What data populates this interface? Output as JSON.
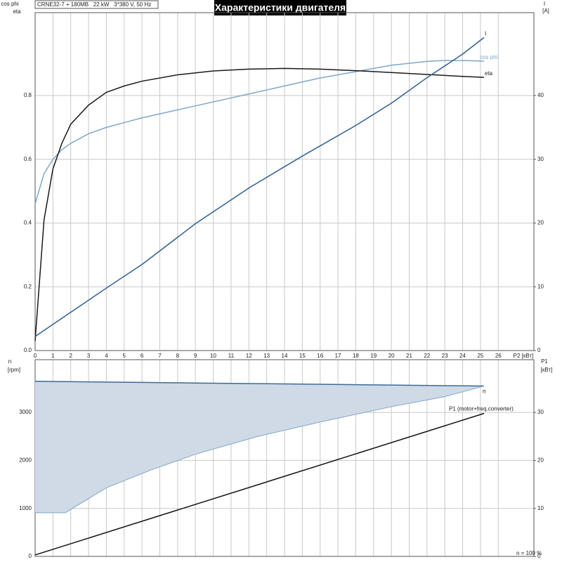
{
  "chart_data": [
    {
      "type": "line",
      "title": "Характеристики двигателя",
      "subtitle": "CRNE32-7 + 180MB   22 kW   3*380 V, 50 Hz",
      "y_label": [
        "cos phi",
        "eta"
      ],
      "y2_label": [
        "I",
        "[A]"
      ],
      "x_label": "P2 [кВт]",
      "xlim": [
        0,
        28
      ],
      "xticks": [
        0,
        1,
        2,
        3,
        4,
        5,
        6,
        7,
        8,
        9,
        10,
        11,
        12,
        13,
        14,
        15,
        16,
        17,
        18,
        19,
        20,
        21,
        22,
        23,
        24,
        25,
        26
      ],
      "ylim": [
        0,
        1.06
      ],
      "yticks": [
        {
          "value": 0,
          "label": "0.0"
        },
        0.2,
        0.4,
        0.6,
        0.8
      ],
      "y2lim": [
        0,
        53
      ],
      "y2ticks": [
        0,
        10,
        20,
        30,
        40
      ],
      "grid": true,
      "xtick_labels": true,
      "series": [
        {
          "name": "cos phi",
          "color": "#7ea7c9",
          "x": [
            0,
            0.5,
            1,
            1.5,
            2,
            3,
            4,
            5,
            6,
            8,
            10,
            12,
            14,
            16,
            18,
            20,
            22,
            23,
            24,
            25.2
          ],
          "values": [
            0.46,
            0.555,
            0.6,
            0.63,
            0.65,
            0.68,
            0.7,
            0.715,
            0.73,
            0.755,
            0.78,
            0.805,
            0.83,
            0.855,
            0.875,
            0.895,
            0.907,
            0.91,
            0.91,
            0.908
          ]
        },
        {
          "name": "eta",
          "color": "#1a1a1a",
          "x": [
            0,
            0.5,
            1,
            1.5,
            2,
            3,
            4,
            5,
            6,
            8,
            10,
            12,
            14,
            16,
            18,
            20,
            22,
            24,
            25.2
          ],
          "values": [
            0.03,
            0.41,
            0.57,
            0.65,
            0.71,
            0.77,
            0.81,
            0.83,
            0.845,
            0.865,
            0.877,
            0.883,
            0.885,
            0.883,
            0.878,
            0.872,
            0.866,
            0.86,
            0.857
          ]
        },
        {
          "name": "I",
          "color": "#2f5f8f",
          "axis": "y2",
          "x": [
            0,
            2,
            4,
            6,
            9,
            12,
            15,
            18,
            20,
            22,
            24,
            25.2
          ],
          "values": [
            2.2,
            6,
            9.8,
            13.5,
            19.9,
            25.5,
            30.5,
            35.3,
            38.8,
            42.8,
            46.5,
            49.1
          ]
        }
      ]
    },
    {
      "type": "area",
      "y_label": [
        "n",
        "[rpm]"
      ],
      "y2_label": [
        "P1",
        "[кВт]"
      ],
      "annotation": "n = 100 %",
      "xlim": [
        0,
        28
      ],
      "xticks": [
        0,
        1,
        2,
        3,
        4,
        5,
        6,
        7,
        8,
        9,
        10,
        11,
        12,
        13,
        14,
        15,
        16,
        17,
        18,
        19,
        20,
        21,
        22,
        23,
        24,
        25,
        26
      ],
      "ylim": [
        0,
        4100
      ],
      "yticks": [
        0,
        1000,
        2000,
        3000
      ],
      "y2lim": [
        0,
        41
      ],
      "y2ticks": [
        0,
        10,
        20,
        30
      ],
      "grid": true,
      "xtick_labels": false,
      "series": [
        {
          "name": "n",
          "color": "#3d6a96",
          "fill": "#cfdae6",
          "x": [
            0,
            1.7,
            4,
            6.5,
            9,
            12.5,
            16,
            20,
            23,
            25.2
          ],
          "values": [
            3650,
            3643,
            3634,
            3624,
            3614,
            3600,
            3587,
            3571,
            3559,
            3550
          ],
          "lower": [
            910,
            910,
            1430,
            1800,
            2130,
            2500,
            2800,
            3120,
            3330,
            3550
          ]
        },
        {
          "name": "P1 (motor+freq.converter)",
          "color": "#111111",
          "axis": "y2",
          "x": [
            0,
            25.2
          ],
          "values": [
            0.3,
            29.8
          ]
        }
      ]
    }
  ]
}
